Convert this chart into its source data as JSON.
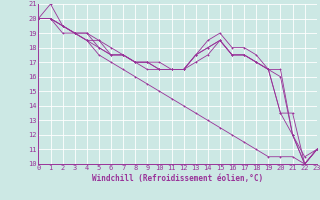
{
  "xlabel": "Windchill (Refroidissement éolien,°C)",
  "background_color": "#cce8e4",
  "grid_color": "#ffffff",
  "line_color": "#993399",
  "xmin": 0,
  "xmax": 23,
  "ymin": 10,
  "ymax": 21,
  "lines": [
    [
      20.0,
      21.0,
      19.5,
      19.0,
      19.0,
      18.0,
      17.5,
      17.5,
      17.0,
      16.5,
      16.5,
      16.5,
      16.5,
      17.5,
      18.5,
      19.0,
      18.0,
      18.0,
      17.5,
      16.5,
      16.5,
      12.0,
      10.5,
      11.0
    ],
    [
      20.0,
      20.0,
      19.5,
      19.0,
      18.5,
      18.0,
      17.5,
      17.5,
      17.0,
      17.0,
      16.5,
      16.5,
      16.5,
      17.5,
      18.0,
      18.5,
      17.5,
      17.5,
      17.0,
      16.5,
      16.0,
      12.0,
      10.0,
      11.0
    ],
    [
      20.0,
      20.0,
      19.5,
      19.0,
      18.5,
      18.5,
      17.5,
      17.5,
      17.0,
      17.0,
      16.5,
      16.5,
      16.5,
      17.5,
      18.0,
      18.5,
      17.5,
      17.5,
      17.0,
      16.5,
      13.5,
      13.5,
      10.0,
      11.0
    ],
    [
      20.0,
      20.0,
      19.5,
      19.0,
      19.0,
      18.5,
      18.0,
      17.5,
      17.0,
      17.0,
      17.0,
      16.5,
      16.5,
      17.0,
      17.5,
      18.5,
      17.5,
      17.5,
      17.0,
      16.5,
      13.5,
      12.0,
      10.0,
      11.0
    ],
    [
      20.0,
      20.0,
      19.0,
      19.0,
      18.5,
      17.5,
      17.0,
      16.5,
      16.0,
      15.5,
      15.0,
      14.5,
      14.0,
      13.5,
      13.0,
      12.5,
      12.0,
      11.5,
      11.0,
      10.5,
      10.5,
      10.5,
      10.0,
      11.0
    ]
  ],
  "tick_fontsize": 5.0,
  "label_fontsize": 5.5,
  "figwidth": 3.2,
  "figheight": 2.0,
  "dpi": 100
}
